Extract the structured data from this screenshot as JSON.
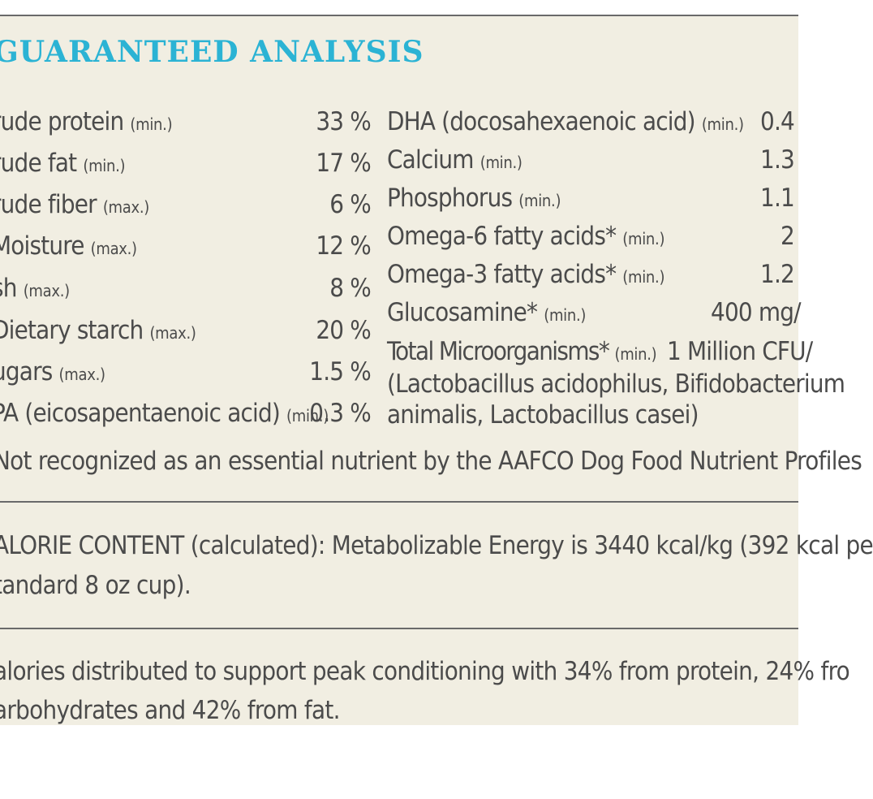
{
  "title": "GUARANTEED ANALYSIS",
  "left_rows": [
    {
      "name": "rude protein",
      "qual": "(min.)",
      "value": "33 %"
    },
    {
      "name": "rude fat",
      "qual": "(min.)",
      "value": "17 %"
    },
    {
      "name": "rude fiber",
      "qual": "(max.)",
      "value": "6 %"
    },
    {
      "name": "Moisture",
      "qual": "(max.)",
      "value": "12 %"
    },
    {
      "name": "sh",
      "qual": "(max.)",
      "value": "8 %"
    },
    {
      "name": "Dietary starch",
      "qual": "(max.)",
      "value": "20 %"
    },
    {
      "name": "ugars",
      "qual": "(max.)",
      "value": "1.5 %"
    },
    {
      "name": "PA (eicosapentaenoic acid)",
      "qual": "(min.)",
      "value": "0.3 %"
    }
  ],
  "right_rows": [
    {
      "name": "DHA (docosahexaenoic acid)",
      "qual": "(min.)",
      "value": "0.4"
    },
    {
      "name": "Calcium",
      "qual": "(min.)",
      "value": "1.3"
    },
    {
      "name": "Phosphorus",
      "qual": "(min.)",
      "value": "1.1"
    },
    {
      "name": "Omega-6 fatty acids*",
      "qual": "(min.)",
      "value": "2"
    },
    {
      "name": "Omega-3 fatty acids*",
      "qual": "(min.)",
      "value": "1.2"
    },
    {
      "name": "Glucosamine*",
      "qual": "(min.)",
      "value": "400 mg/"
    },
    {
      "name": "Total Microorganisms*",
      "qual": "(min.)",
      "value": "1 Million CFU/"
    }
  ],
  "microorganisms_detail": [
    "(Lactobacillus acidophilus, Bifidobacterium",
    "animalis, Lactobacillus casei)"
  ],
  "footnote": "Not recognized as an essential nutrient by the AAFCO Dog Food Nutrient Profiles",
  "calorie_content": [
    "ALORIE CONTENT (calculated): Metabolizable Energy is 3440 kcal/kg (392 kcal pe",
    "tandard 8 oz cup)."
  ],
  "calorie_distribution": [
    "alories distributed to support peak conditioning with 34% from protein, 24% fro",
    "arbohydrates and 42% from fat."
  ],
  "colors": {
    "title": "#2bb3d4",
    "background": "#f1eee2",
    "text": "#4b4b4b",
    "rule": "#6a6a6a"
  }
}
